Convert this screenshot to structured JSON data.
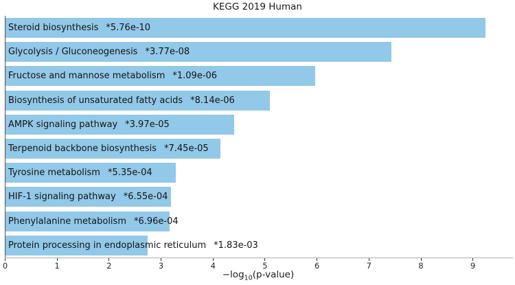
{
  "figure": {
    "background": "#ffffff"
  },
  "chart_data": {
    "type": "bar",
    "orientation": "horizontal",
    "title": "KEGG 2019 Human",
    "xlabel": "−log₁₀(p-value)",
    "xlabel_parts": {
      "prefix": "−log",
      "subscript": "10",
      "suffix": "(p-value)"
    },
    "ylabel": "",
    "xlim": [
      0,
      9.75
    ],
    "xticks": [
      "0",
      "1",
      "2",
      "3",
      "4",
      "5",
      "6",
      "7",
      "8",
      "9"
    ],
    "grid": false,
    "legend": "none",
    "bar_color": "#92C8E8",
    "label_color": "#141414",
    "bars": [
      {
        "label": "Steroid biosynthesis",
        "pvalue_text": "*5.76e-10",
        "value": 9.24
      },
      {
        "label": "Glycolysis / Gluconeogenesis",
        "pvalue_text": "*3.77e-08",
        "value": 7.42
      },
      {
        "label": "Fructose and mannose metabolism",
        "pvalue_text": "*1.09e-06",
        "value": 5.96
      },
      {
        "label": "Biosynthesis of unsaturated fatty acids",
        "pvalue_text": "*8.14e-06",
        "value": 5.09
      },
      {
        "label": "AMPK signaling pathway",
        "pvalue_text": "*3.97e-05",
        "value": 4.4
      },
      {
        "label": "Terpenoid backbone biosynthesis",
        "pvalue_text": "*7.45e-05",
        "value": 4.13
      },
      {
        "label": "Tyrosine metabolism",
        "pvalue_text": "*5.35e-04",
        "value": 3.27
      },
      {
        "label": "HIF-1 signaling pathway",
        "pvalue_text": "*6.55e-04",
        "value": 3.18
      },
      {
        "label": "Phenylalanine metabolism",
        "pvalue_text": "*6.96e-04",
        "value": 3.16
      },
      {
        "label": "Protein processing in endoplasmic reticulum",
        "pvalue_text": "*1.83e-03",
        "value": 2.74
      }
    ]
  }
}
